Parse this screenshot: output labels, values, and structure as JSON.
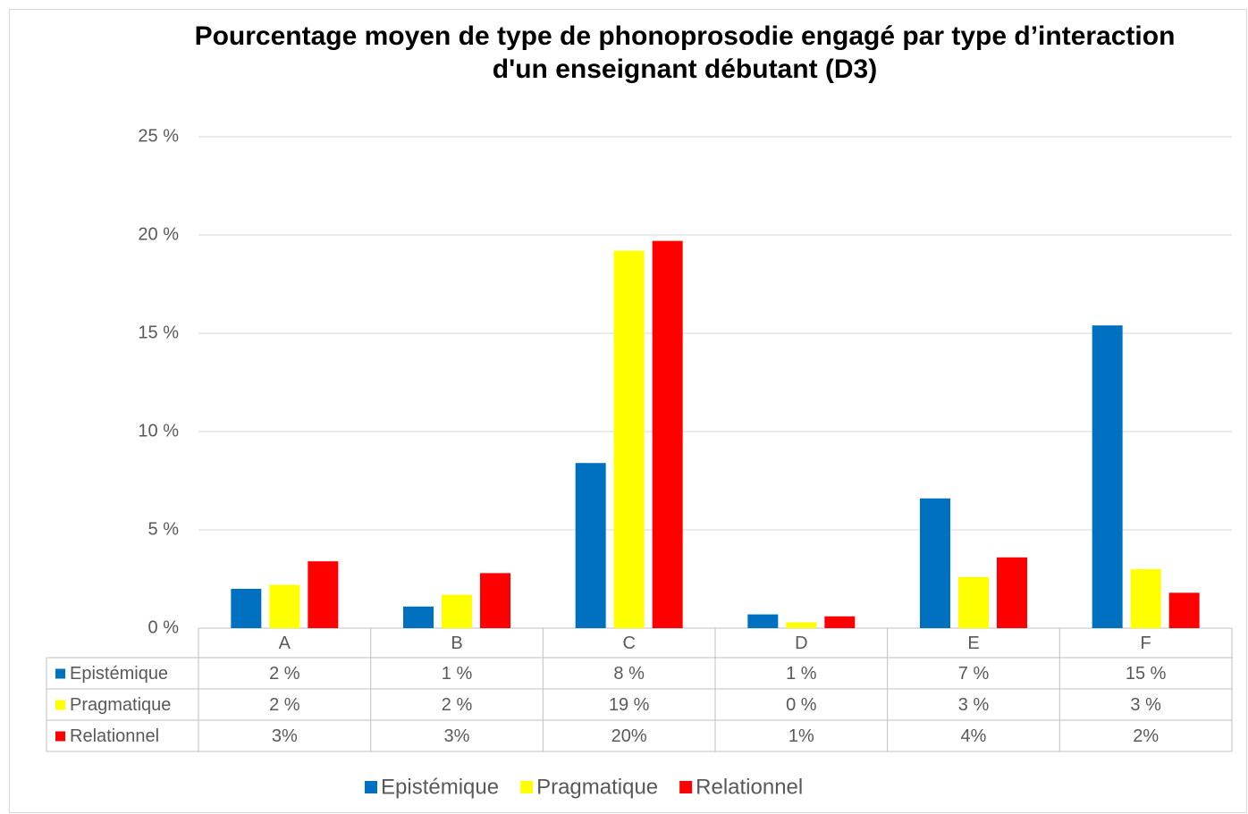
{
  "chart_data": {
    "type": "bar",
    "title": "Pourcentage moyen de type de phonoprosodie engagé par type d’interaction d'un enseignant débutant (D3)",
    "categories": [
      "A",
      "B",
      "C",
      "D",
      "E",
      "F"
    ],
    "series": [
      {
        "name": "Epistémique",
        "color": "#0070c0",
        "values": [
          2.0,
          1.1,
          8.4,
          0.7,
          6.6,
          15.4
        ],
        "value_labels": [
          "2 %",
          "1 %",
          "8 %",
          "1 %",
          "7 %",
          "15 %"
        ]
      },
      {
        "name": "Pragmatique",
        "color": "#ffff00",
        "values": [
          2.2,
          1.7,
          19.2,
          0.3,
          2.6,
          3.0
        ],
        "value_labels": [
          "2 %",
          "2 %",
          "19 %",
          "0 %",
          "3 %",
          "3 %"
        ]
      },
      {
        "name": "Relationnel",
        "color": "#ff0000",
        "values": [
          3.4,
          2.8,
          19.7,
          0.6,
          3.6,
          1.8
        ],
        "value_labels": [
          "3%",
          "3%",
          "20%",
          "1%",
          "4%",
          "2%"
        ]
      }
    ],
    "ylim": [
      0,
      25
    ],
    "yticks": [
      {
        "value": 0,
        "label": "0 %"
      },
      {
        "value": 5,
        "label": "5 %"
      },
      {
        "value": 10,
        "label": "10 %"
      },
      {
        "value": 15,
        "label": "15 %"
      },
      {
        "value": 20,
        "label": "20 %"
      },
      {
        "value": 25,
        "label": "25 %"
      }
    ],
    "grid": true,
    "legend": "bottom"
  }
}
